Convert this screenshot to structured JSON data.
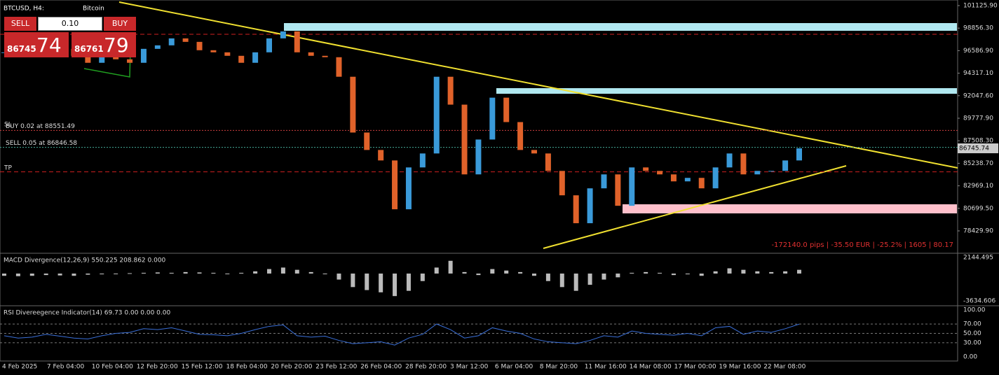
{
  "header": {
    "symbol": "BTCUSD, H4:",
    "description": "Bitcoin",
    "stats": "-172140.0 pips | -35.50 EUR | -25.2% | 1605 | 80.17"
  },
  "trade_panel": {
    "sell": "SELL",
    "buy": "BUY",
    "volume": "0.10",
    "sell_price": "86745",
    "sell_pips": "74",
    "buy_price": "86761",
    "buy_pips": "79"
  },
  "orders": {
    "sl": "SL",
    "tp": "TP",
    "lines": [
      {
        "label": "BUY 0.02 at 88551.49",
        "price": 88551.49
      },
      {
        "label": "SELL 0.05 at 86846.58",
        "price": 86846.58
      }
    ],
    "current": {
      "value": 86745.74,
      "label": "86745.74"
    }
  },
  "price_axis": [
    {
      "value": 101125.9,
      "label": "101125.90"
    },
    {
      "value": 98856.3,
      "label": "98856.30"
    },
    {
      "value": 96586.9,
      "label": "96586.90"
    },
    {
      "value": 94317.1,
      "label": "94317.10"
    },
    {
      "value": 92047.6,
      "label": "92047.60"
    },
    {
      "value": 89777.9,
      "label": "89777.90"
    },
    {
      "value": 87508.3,
      "label": "87508.30"
    },
    {
      "value": 85238.7,
      "label": "85238.70"
    },
    {
      "value": 82969.1,
      "label": "82969.10"
    },
    {
      "value": 80699.5,
      "label": "80699.50"
    },
    {
      "value": 78429.9,
      "label": "78429.90"
    }
  ],
  "prices": [
    96418,
    96067,
    96207,
    96418,
    96769,
    96067,
    95364,
    96067,
    95715,
    95364,
    96769,
    97121,
    97823,
    97472,
    96629,
    96418,
    96067,
    95364,
    96418,
    97823,
    98526,
    96418,
    96067,
    95926,
    93958,
    88337,
    86580,
    85526,
    80607,
    84823,
    86229,
    93958,
    91148,
    84121,
    87634,
    91850,
    89391,
    86580,
    86229,
    84472,
    82013,
    79202,
    82716,
    84121,
    80958,
    84823,
    84472,
    84121,
    83418,
    83770,
    82716,
    84823,
    86229,
    84121,
    84472,
    84472,
    85526,
    86745.74
  ],
  "macd": {
    "title": "MACD Divergence(12,26,9) 550.225 208.862 0.000",
    "axis": [
      {
        "value": 2144.495,
        "label": "2144.495"
      },
      {
        "value": -3634.606,
        "label": "-3634.606"
      }
    ],
    "values": [
      -300,
      -350,
      -300,
      -200,
      -250,
      -300,
      -150,
      -100,
      -50,
      50,
      100,
      150,
      100,
      200,
      150,
      100,
      0,
      100,
      300,
      600,
      800,
      500,
      200,
      0,
      -800,
      -1800,
      -2200,
      -2500,
      -3000,
      -2300,
      -1000,
      800,
      1700,
      200,
      -200,
      600,
      400,
      200,
      -300,
      -1000,
      -1800,
      -2300,
      -1500,
      -800,
      -500,
      100,
      200,
      100,
      -200,
      -100,
      -300,
      300,
      700,
      500,
      300,
      200,
      300,
      500
    ]
  },
  "rsi": {
    "title": "RSI Divereegence Indicator(14) 69.73 0.00 0.00 0.00",
    "axis": [
      {
        "value": 100,
        "label": "100.00"
      },
      {
        "value": 70,
        "label": "70.00"
      },
      {
        "value": 50,
        "label": "50.00"
      },
      {
        "value": 30,
        "label": "30.00"
      },
      {
        "value": 0,
        "label": "0.00"
      }
    ],
    "values": [
      45,
      40,
      42,
      48,
      44,
      40,
      38,
      45,
      50,
      52,
      60,
      58,
      62,
      55,
      48,
      47,
      45,
      50,
      58,
      65,
      68,
      45,
      42,
      44,
      35,
      28,
      30,
      32,
      25,
      40,
      48,
      70,
      58,
      40,
      45,
      62,
      55,
      50,
      38,
      32,
      30,
      28,
      35,
      45,
      42,
      55,
      50,
      48,
      46,
      50,
      45,
      62,
      65,
      48,
      55,
      52,
      60,
      69.73
    ]
  },
  "time_axis": [
    "4 Feb 2025",
    "7 Feb 04:00",
    "10 Feb 04:00",
    "12 Feb 20:00",
    "15 Feb 12:00",
    "18 Feb 04:00",
    "20 Feb 20:00",
    "23 Feb 12:00",
    "26 Feb 04:00",
    "28 Feb 20:00",
    "3 Mar 12:00",
    "6 Mar 04:00",
    "8 Mar 20:00",
    "11 Mar 16:00",
    "14 Mar 08:00",
    "17 Mar 00:00",
    "19 Mar 16:00",
    "22 Mar 08:00"
  ]
}
